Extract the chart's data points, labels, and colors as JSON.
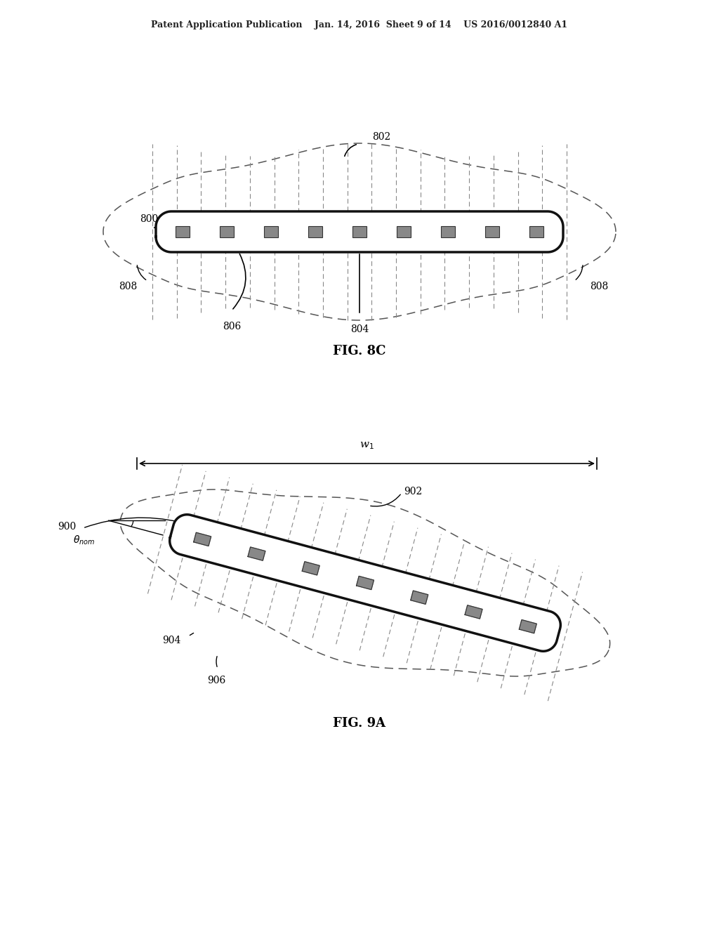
{
  "bg_color": "#ffffff",
  "header_text": "Patent Application Publication    Jan. 14, 2016  Sheet 9 of 14    US 2016/0012840 A1",
  "fig8c_label": "FIG. 8C",
  "fig9a_label": "FIG. 9A"
}
